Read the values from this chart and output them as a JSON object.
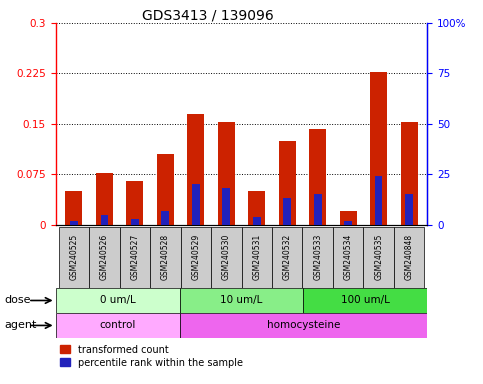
{
  "title": "GDS3413 / 139096",
  "samples": [
    "GSM240525",
    "GSM240526",
    "GSM240527",
    "GSM240528",
    "GSM240529",
    "GSM240530",
    "GSM240531",
    "GSM240532",
    "GSM240533",
    "GSM240534",
    "GSM240535",
    "GSM240848"
  ],
  "red_values": [
    0.05,
    0.077,
    0.065,
    0.105,
    0.165,
    0.152,
    0.05,
    0.125,
    0.143,
    0.02,
    0.227,
    0.152
  ],
  "blue_percentile": [
    2,
    5,
    3,
    7,
    20,
    18,
    4,
    13,
    15,
    2,
    24,
    15
  ],
  "ylim_left": [
    0,
    0.3
  ],
  "ylim_right": [
    0,
    100
  ],
  "yticks_left": [
    0,
    0.075,
    0.15,
    0.225,
    0.3
  ],
  "ytick_labels_left": [
    "0",
    "0.075",
    "0.15",
    "0.225",
    "0.3"
  ],
  "yticks_right": [
    0,
    25,
    50,
    75,
    100
  ],
  "ytick_labels_right": [
    "0",
    "25",
    "50",
    "75",
    "100%"
  ],
  "dose_groups": [
    {
      "label": "0 um/L",
      "start": 0,
      "end": 4,
      "color": "#ccffcc"
    },
    {
      "label": "10 um/L",
      "start": 4,
      "end": 8,
      "color": "#88ee88"
    },
    {
      "label": "100 um/L",
      "start": 8,
      "end": 12,
      "color": "#44dd44"
    }
  ],
  "agent_groups": [
    {
      "label": "control",
      "start": 0,
      "end": 4,
      "color": "#ffaaff"
    },
    {
      "label": "homocysteine",
      "start": 4,
      "end": 12,
      "color": "#ee66ee"
    }
  ],
  "bar_color_red": "#cc2200",
  "bar_color_blue": "#2222bb",
  "bar_width": 0.55,
  "blue_bar_width": 0.25,
  "grid_color": "#000000",
  "tick_area_color": "#cccccc",
  "title_fontsize": 10
}
